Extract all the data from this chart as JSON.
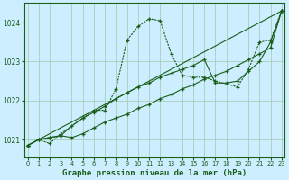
{
  "bg_color": "#cceeff",
  "grid_color": "#aaccbb",
  "line_color": "#1a5e1a",
  "xlabel": "Graphe pression niveau de la mer (hPa)",
  "xlabel_fontsize": 6.5,
  "yticks": [
    1021,
    1022,
    1023,
    1024
  ],
  "xticks": [
    0,
    1,
    2,
    3,
    4,
    5,
    6,
    7,
    8,
    9,
    10,
    11,
    12,
    13,
    14,
    15,
    16,
    17,
    18,
    19,
    20,
    21,
    22,
    23
  ],
  "xlim": [
    -0.3,
    23.3
  ],
  "ylim": [
    1020.55,
    1024.5
  ],
  "series": {
    "line1": [
      1020.85,
      1021.0,
      1020.9,
      1021.15,
      1021.55,
      1021.75,
      1021.75,
      1022.3,
      1023.55,
      1023.9,
      1024.1,
      1024.05,
      1023.2,
      1022.65,
      1022.6,
      1022.6,
      1022.5,
      1022.35,
      1022.8,
      1023.5,
      1023.55,
      1024.3
    ],
    "line1_x": [
      0,
      1,
      2,
      3,
      5,
      6,
      7,
      8,
      9,
      10,
      11,
      12,
      13,
      14,
      15,
      16,
      17,
      19,
      20,
      21,
      22,
      23
    ],
    "line2": [
      1020.85,
      1024.3
    ],
    "line2_x": [
      0,
      23
    ],
    "line3": [
      1020.85,
      1021.0,
      1021.05,
      1021.1,
      1021.35,
      1021.55,
      1021.7,
      1021.85,
      1022.05,
      1022.2,
      1022.35,
      1022.45,
      1022.6,
      1022.7,
      1022.8,
      1022.9,
      1023.05,
      1022.45,
      1022.45,
      1022.5,
      1022.75,
      1023.0,
      1023.5,
      1024.3
    ],
    "line3_x": [
      0,
      1,
      2,
      3,
      4,
      5,
      6,
      7,
      8,
      9,
      10,
      11,
      12,
      13,
      14,
      15,
      16,
      17,
      18,
      19,
      20,
      21,
      22,
      23
    ],
    "line4": [
      1020.85,
      1021.0,
      1021.05,
      1021.1,
      1021.05,
      1021.15,
      1021.3,
      1021.45,
      1021.55,
      1021.65,
      1021.8,
      1021.9,
      1022.05,
      1022.15,
      1022.3,
      1022.4,
      1022.55,
      1022.65,
      1022.75,
      1022.9,
      1023.05,
      1023.2,
      1023.35,
      1024.3
    ],
    "line4_x": [
      0,
      1,
      2,
      3,
      4,
      5,
      6,
      7,
      8,
      9,
      10,
      11,
      12,
      13,
      14,
      15,
      16,
      17,
      18,
      19,
      20,
      21,
      22,
      23
    ]
  }
}
